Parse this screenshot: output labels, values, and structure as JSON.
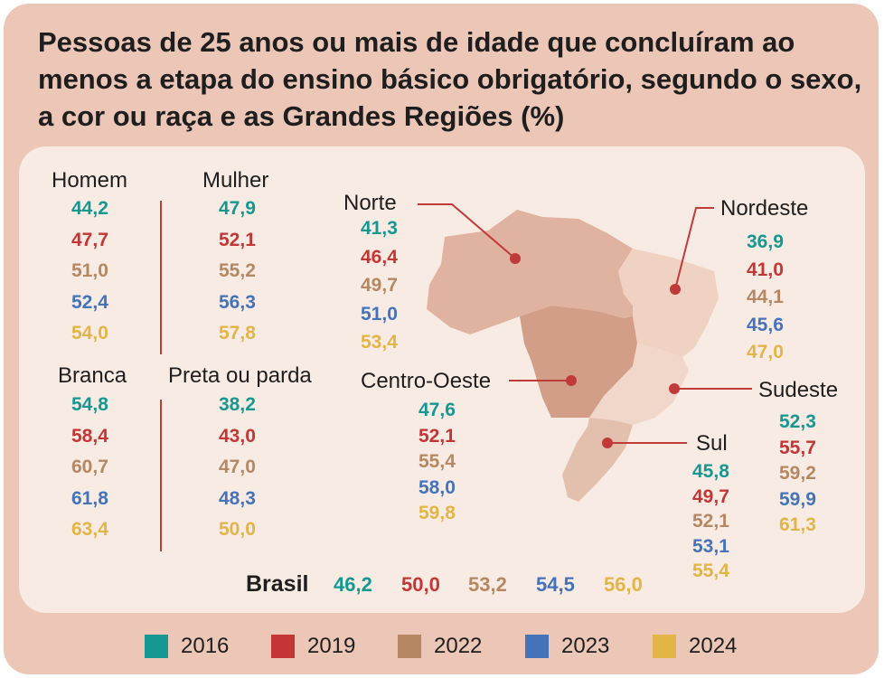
{
  "title": "Pessoas de 25 anos ou mais de idade que concluíram ao menos a etapa do ensino básico obrigatório, segundo o sexo, a cor ou raça e as Grandes Regiões (%)",
  "colors": [
    "#159891",
    "#c43636",
    "#b58762",
    "#4473b9",
    "#e3b446"
  ],
  "chart_data": {
    "type": "table",
    "title": "Pessoas de 25 anos ou mais de idade que concluíram ao menos a etapa do ensino básico obrigatório, segundo o sexo, a cor ou raça e as Grandes Regiões (%)",
    "years": [
      "2016",
      "2019",
      "2022",
      "2023",
      "2024"
    ],
    "groups": [
      {
        "name": "Homem",
        "values": [
          "44,2",
          "47,7",
          "51,0",
          "52,4",
          "54,0"
        ]
      },
      {
        "name": "Mulher",
        "values": [
          "47,9",
          "52,1",
          "55,2",
          "56,3",
          "57,8"
        ]
      },
      {
        "name": "Branca",
        "values": [
          "54,8",
          "58,4",
          "60,7",
          "61,8",
          "63,4"
        ]
      },
      {
        "name": "Preta ou parda",
        "values": [
          "38,2",
          "43,0",
          "47,0",
          "48,3",
          "50,0"
        ]
      }
    ],
    "regions": [
      {
        "name": "Norte",
        "values": [
          "41,3",
          "46,4",
          "49,7",
          "51,0",
          "53,4"
        ]
      },
      {
        "name": "Nordeste",
        "values": [
          "36,9",
          "41,0",
          "44,1",
          "45,6",
          "47,0"
        ]
      },
      {
        "name": "Centro-Oeste",
        "values": [
          "47,6",
          "52,1",
          "55,4",
          "58,0",
          "59,8"
        ]
      },
      {
        "name": "Sudeste",
        "values": [
          "52,3",
          "55,7",
          "59,2",
          "59,9",
          "61,3"
        ]
      },
      {
        "name": "Sul",
        "values": [
          "45,8",
          "49,7",
          "52,1",
          "53,1",
          "55,4"
        ]
      }
    ],
    "brasil": {
      "name": "Brasil",
      "values": [
        "46,2",
        "50,0",
        "53,2",
        "54,5",
        "56,0"
      ]
    }
  }
}
